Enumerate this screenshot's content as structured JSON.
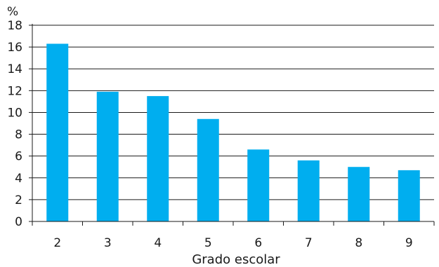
{
  "chart_data": {
    "type": "bar",
    "title": "",
    "xlabel": "Grado escolar",
    "ylabel": "%",
    "categories": [
      "2",
      "3",
      "4",
      "5",
      "6",
      "7",
      "8",
      "9"
    ],
    "values": [
      16.3,
      11.9,
      11.5,
      9.4,
      6.6,
      5.6,
      5.0,
      4.7
    ],
    "ylim": [
      0,
      18
    ],
    "yticks": [
      "0",
      "2",
      "4",
      "6",
      "8",
      "10",
      "12",
      "14",
      "16",
      "18"
    ],
    "grid": true,
    "bar_color": "#00AEEF",
    "legend": "none"
  }
}
